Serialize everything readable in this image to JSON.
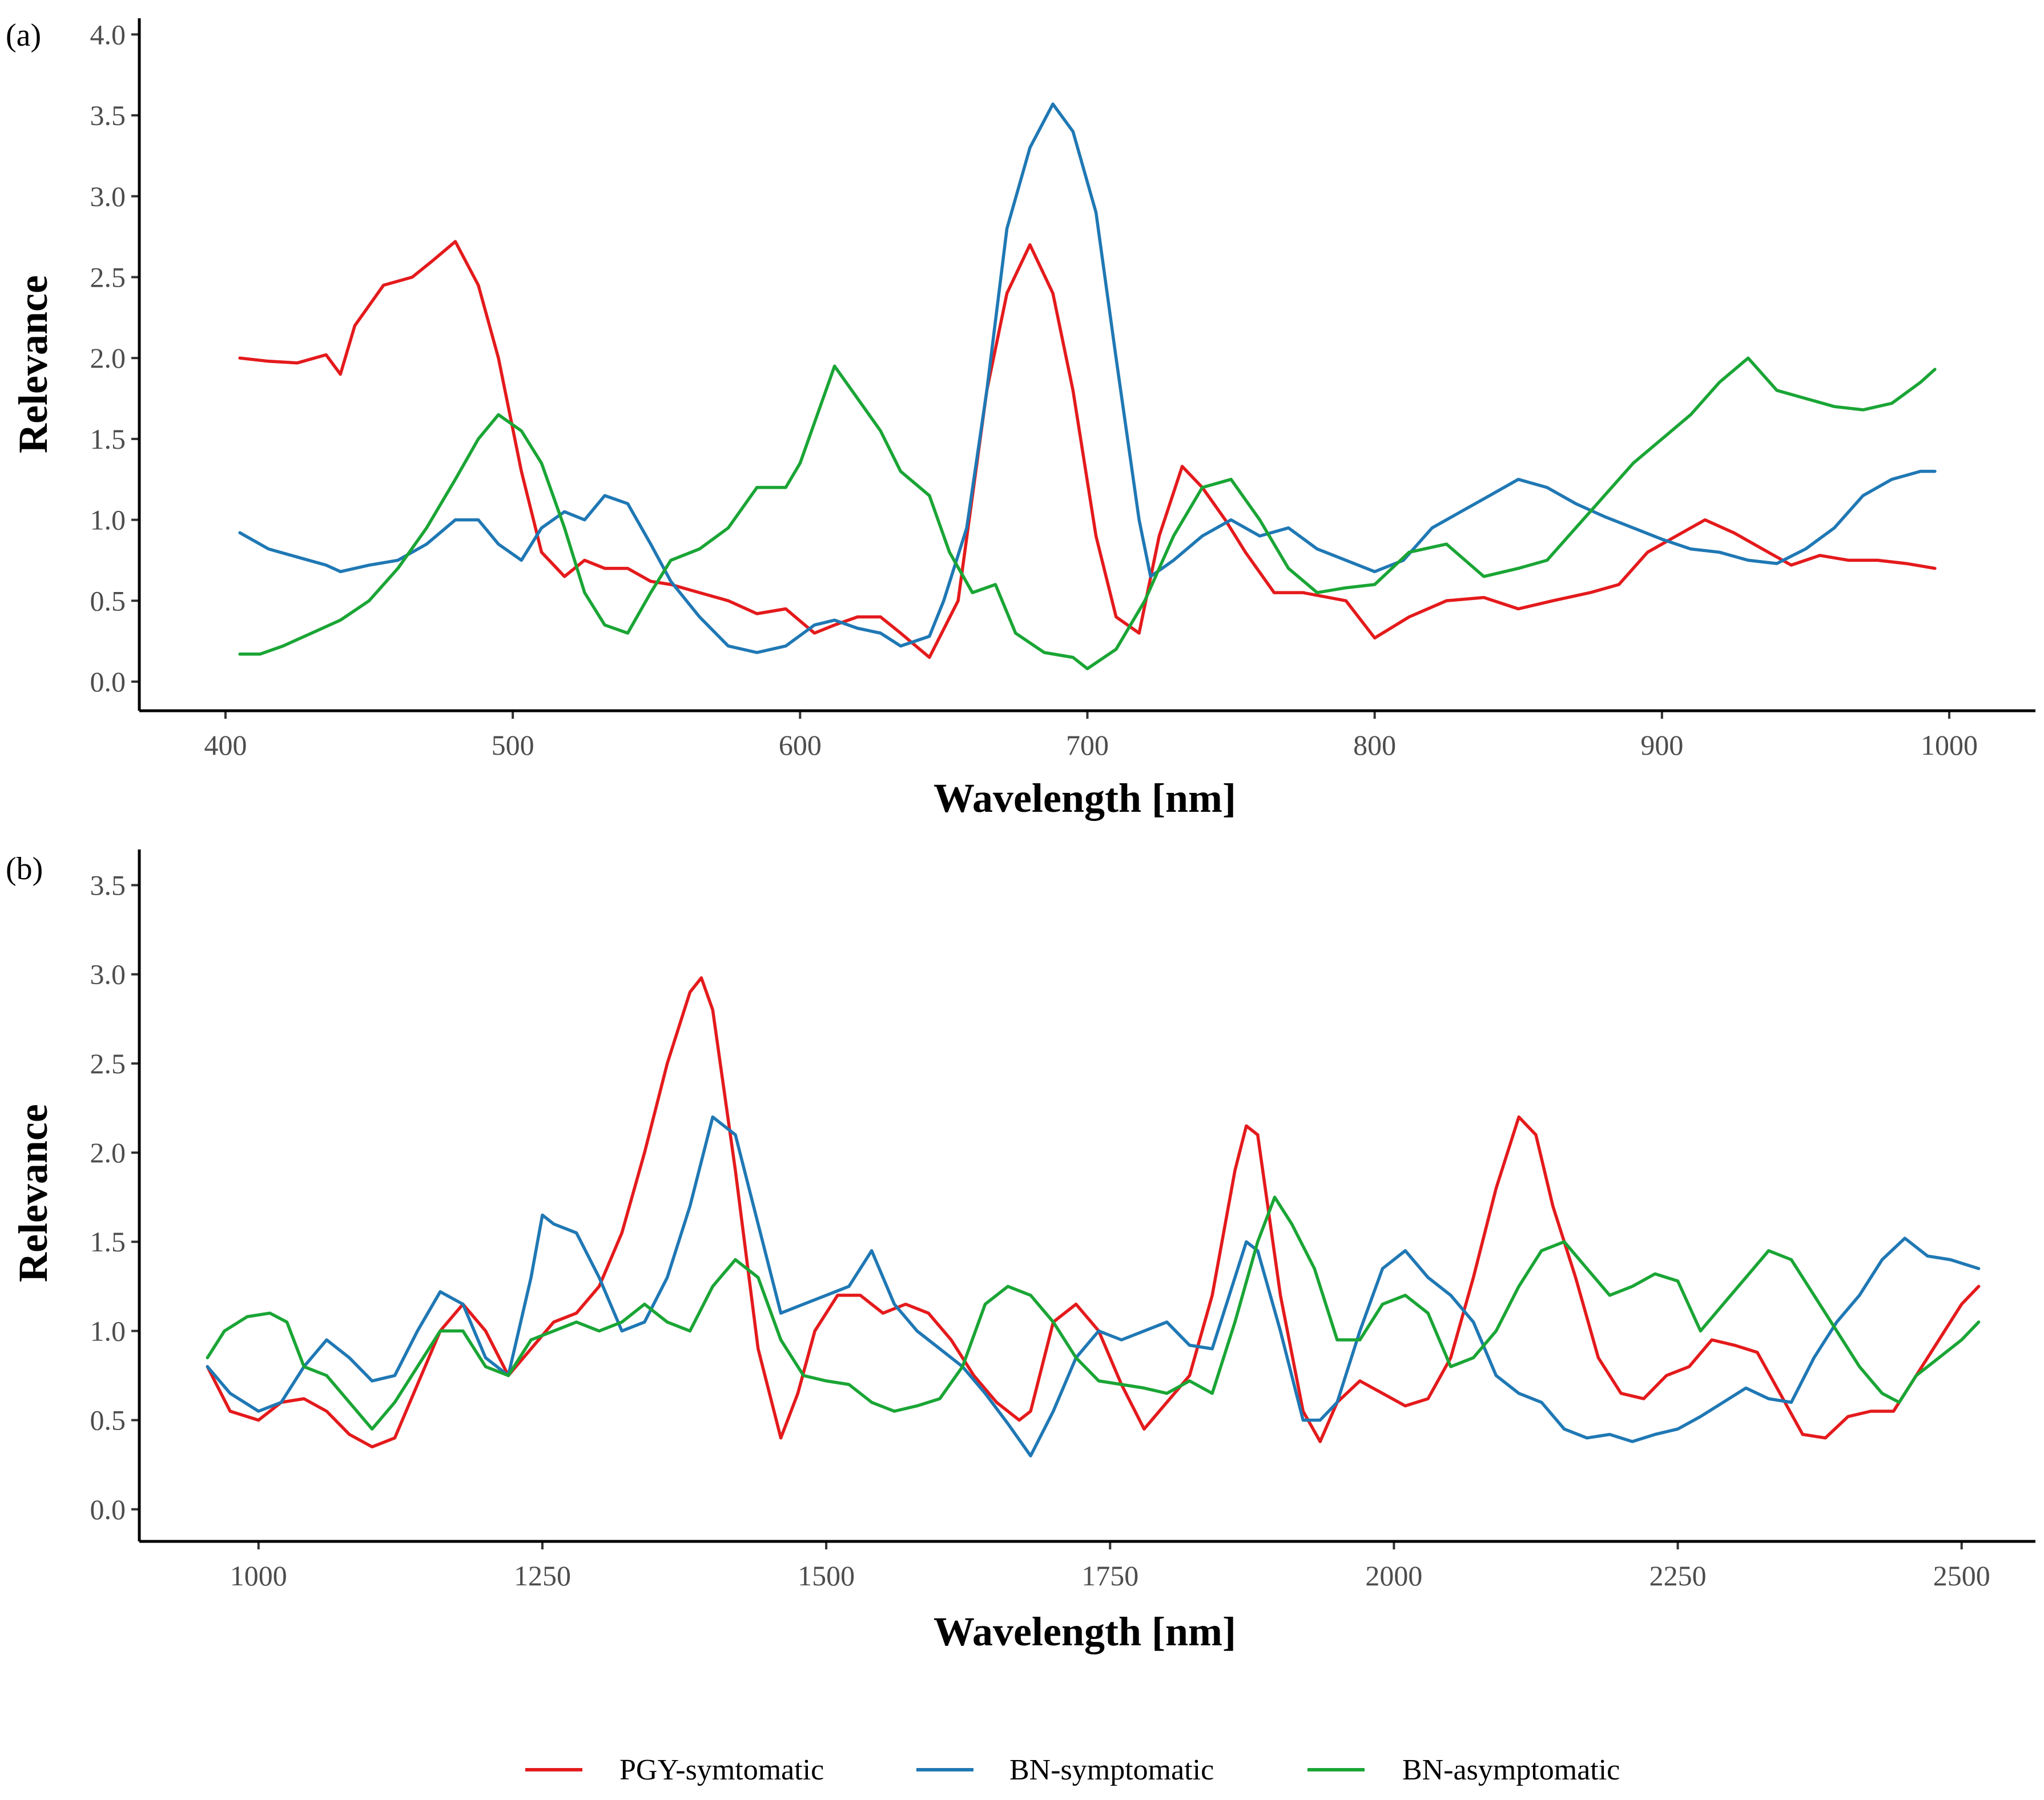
{
  "legend": {
    "entries": [
      {
        "label": "PGY-symtomatic",
        "color": "#e41a1c"
      },
      {
        "label": "BN-symptomatic",
        "color": "#1f78b4"
      },
      {
        "label": "BN-asymptomatic",
        "color": "#1aa535"
      }
    ]
  },
  "chart_data": [
    {
      "type": "line",
      "panel": "(a)",
      "xlabel": "Wavelength [nm]",
      "ylabel": "Relevance",
      "xlim": [
        370,
        1030
      ],
      "ylim": [
        -0.18,
        4.1
      ],
      "xticks": [
        400,
        500,
        600,
        700,
        800,
        900,
        1000
      ],
      "yticks": [
        0.0,
        0.5,
        1.0,
        1.5,
        2.0,
        2.5,
        3.0,
        3.5,
        4.0
      ],
      "xtick_labels": [
        "400",
        "500",
        "600",
        "700",
        "800",
        "900",
        "1000"
      ],
      "ytick_labels": [
        "0.0",
        "0.5",
        "1.0",
        "1.5",
        "2.0",
        "2.5",
        "3.0",
        "3.5",
        "4.0"
      ],
      "series": [
        {
          "name": "PGY-symtomatic",
          "color": "#e41a1c",
          "x": [
            405,
            415,
            425,
            435,
            440,
            445,
            455,
            465,
            472,
            480,
            488,
            495,
            503,
            510,
            518,
            525,
            532,
            540,
            548,
            555,
            565,
            575,
            585,
            595,
            605,
            612,
            620,
            628,
            635,
            645,
            655,
            665,
            672,
            680,
            688,
            695,
            703,
            710,
            718,
            725,
            733,
            740,
            748,
            755,
            765,
            775,
            790,
            800,
            812,
            825,
            838,
            850,
            862,
            875,
            885,
            895,
            905,
            915,
            925,
            935,
            945,
            955,
            965,
            975,
            985,
            995
          ],
          "values": [
            2.0,
            1.98,
            1.97,
            2.02,
            1.9,
            2.2,
            2.45,
            2.5,
            2.6,
            2.72,
            2.45,
            2.0,
            1.3,
            0.8,
            0.65,
            0.75,
            0.7,
            0.7,
            0.62,
            0.6,
            0.55,
            0.5,
            0.42,
            0.45,
            0.3,
            0.35,
            0.4,
            0.4,
            0.3,
            0.15,
            0.5,
            1.8,
            2.4,
            2.7,
            2.4,
            1.8,
            0.9,
            0.4,
            0.3,
            0.9,
            1.33,
            1.2,
            1.0,
            0.8,
            0.55,
            0.55,
            0.5,
            0.27,
            0.4,
            0.5,
            0.52,
            0.45,
            0.5,
            0.55,
            0.6,
            0.8,
            0.9,
            1.0,
            0.92,
            0.82,
            0.72,
            0.78,
            0.75,
            0.75,
            0.73,
            0.7
          ]
        },
        {
          "name": "BN-symptomatic",
          "color": "#1f78b4",
          "x": [
            405,
            415,
            425,
            435,
            440,
            450,
            460,
            470,
            480,
            488,
            495,
            503,
            510,
            518,
            525,
            532,
            540,
            548,
            555,
            565,
            575,
            585,
            595,
            605,
            612,
            620,
            628,
            635,
            645,
            650,
            658,
            665,
            672,
            680,
            688,
            695,
            703,
            710,
            718,
            722,
            730,
            740,
            750,
            760,
            770,
            780,
            790,
            800,
            810,
            820,
            830,
            840,
            850,
            860,
            870,
            880,
            890,
            900,
            910,
            920,
            930,
            940,
            950,
            960,
            970,
            980,
            990,
            995
          ],
          "values": [
            0.92,
            0.82,
            0.77,
            0.72,
            0.68,
            0.72,
            0.75,
            0.85,
            1.0,
            1.0,
            0.85,
            0.75,
            0.95,
            1.05,
            1.0,
            1.15,
            1.1,
            0.85,
            0.62,
            0.4,
            0.22,
            0.18,
            0.22,
            0.35,
            0.38,
            0.33,
            0.3,
            0.22,
            0.28,
            0.5,
            0.95,
            1.8,
            2.8,
            3.3,
            3.57,
            3.4,
            2.9,
            2.0,
            1.0,
            0.65,
            0.75,
            0.9,
            1.0,
            0.9,
            0.95,
            0.82,
            0.75,
            0.68,
            0.75,
            0.95,
            1.05,
            1.15,
            1.25,
            1.2,
            1.1,
            1.02,
            0.95,
            0.88,
            0.82,
            0.8,
            0.75,
            0.73,
            0.82,
            0.95,
            1.15,
            1.25,
            1.3,
            1.3
          ]
        },
        {
          "name": "BN-asymptomatic",
          "color": "#1aa535",
          "x": [
            405,
            412,
            420,
            430,
            440,
            450,
            460,
            470,
            480,
            488,
            495,
            503,
            510,
            518,
            525,
            532,
            540,
            548,
            555,
            565,
            575,
            585,
            595,
            600,
            605,
            612,
            620,
            628,
            635,
            645,
            652,
            660,
            668,
            675,
            685,
            695,
            700,
            710,
            720,
            730,
            740,
            750,
            760,
            770,
            780,
            790,
            800,
            812,
            825,
            838,
            850,
            860,
            870,
            880,
            890,
            900,
            910,
            920,
            930,
            940,
            950,
            960,
            970,
            980,
            990,
            995
          ],
          "values": [
            0.17,
            0.17,
            0.22,
            0.3,
            0.38,
            0.5,
            0.7,
            0.95,
            1.25,
            1.5,
            1.65,
            1.55,
            1.35,
            0.95,
            0.55,
            0.35,
            0.3,
            0.55,
            0.75,
            0.82,
            0.95,
            1.2,
            1.2,
            1.35,
            1.6,
            1.95,
            1.75,
            1.55,
            1.3,
            1.15,
            0.8,
            0.55,
            0.6,
            0.3,
            0.18,
            0.15,
            0.08,
            0.2,
            0.5,
            0.9,
            1.2,
            1.25,
            1.0,
            0.7,
            0.55,
            0.58,
            0.6,
            0.8,
            0.85,
            0.65,
            0.7,
            0.75,
            0.95,
            1.15,
            1.35,
            1.5,
            1.65,
            1.85,
            2.0,
            1.8,
            1.75,
            1.7,
            1.68,
            1.72,
            1.85,
            1.93
          ]
        }
      ]
    },
    {
      "type": "line",
      "panel": "(b)",
      "xlabel": "Wavelength [nm]",
      "ylabel": "Relevance",
      "xlim": [
        895,
        2565
      ],
      "ylim": [
        -0.18,
        3.7
      ],
      "xticks": [
        1000,
        1250,
        1500,
        1750,
        2000,
        2250,
        2500
      ],
      "yticks": [
        0.0,
        0.5,
        1.0,
        1.5,
        2.0,
        2.5,
        3.0,
        3.5
      ],
      "xtick_labels": [
        "1000",
        "1250",
        "1500",
        "1750",
        "2000",
        "2250",
        "2500"
      ],
      "ytick_labels": [
        "0.0",
        "0.5",
        "1.0",
        "1.5",
        "2.0",
        "2.5",
        "3.0",
        "3.5"
      ],
      "series": [
        {
          "name": "PGY-symtomatic",
          "color": "#e41a1c",
          "x": [
            955,
            975,
            1000,
            1020,
            1040,
            1060,
            1080,
            1100,
            1120,
            1140,
            1160,
            1180,
            1200,
            1220,
            1240,
            1260,
            1280,
            1300,
            1320,
            1340,
            1360,
            1380,
            1390,
            1400,
            1420,
            1440,
            1460,
            1475,
            1490,
            1510,
            1530,
            1550,
            1570,
            1590,
            1610,
            1630,
            1650,
            1670,
            1680,
            1700,
            1720,
            1740,
            1760,
            1780,
            1800,
            1820,
            1840,
            1860,
            1870,
            1880,
            1900,
            1920,
            1935,
            1950,
            1970,
            1990,
            2010,
            2030,
            2050,
            2070,
            2090,
            2110,
            2125,
            2140,
            2160,
            2180,
            2200,
            2220,
            2240,
            2260,
            2280,
            2300,
            2320,
            2340,
            2360,
            2380,
            2400,
            2420,
            2440,
            2460,
            2480,
            2500,
            2515
          ],
          "values": [
            0.8,
            0.55,
            0.5,
            0.6,
            0.62,
            0.55,
            0.42,
            0.35,
            0.4,
            0.7,
            1.0,
            1.15,
            1.0,
            0.75,
            0.9,
            1.05,
            1.1,
            1.25,
            1.55,
            2.0,
            2.5,
            2.9,
            2.98,
            2.8,
            1.9,
            0.9,
            0.4,
            0.65,
            1.0,
            1.2,
            1.2,
            1.1,
            1.15,
            1.1,
            0.95,
            0.75,
            0.6,
            0.5,
            0.55,
            1.05,
            1.15,
            1.0,
            0.7,
            0.45,
            0.6,
            0.75,
            1.2,
            1.9,
            2.15,
            2.1,
            1.2,
            0.55,
            0.38,
            0.6,
            0.72,
            0.65,
            0.58,
            0.62,
            0.85,
            1.3,
            1.8,
            2.2,
            2.1,
            1.7,
            1.3,
            0.85,
            0.65,
            0.62,
            0.75,
            0.8,
            0.95,
            0.92,
            0.88,
            0.65,
            0.42,
            0.4,
            0.52,
            0.55,
            0.55,
            0.75,
            0.95,
            1.15,
            1.25
          ]
        },
        {
          "name": "BN-symptomatic",
          "color": "#1f78b4",
          "x": [
            955,
            975,
            1000,
            1020,
            1040,
            1060,
            1080,
            1100,
            1120,
            1140,
            1160,
            1180,
            1200,
            1220,
            1240,
            1250,
            1260,
            1280,
            1300,
            1320,
            1340,
            1360,
            1380,
            1400,
            1420,
            1440,
            1460,
            1480,
            1500,
            1520,
            1540,
            1560,
            1580,
            1600,
            1620,
            1640,
            1660,
            1680,
            1700,
            1720,
            1740,
            1760,
            1780,
            1800,
            1820,
            1840,
            1860,
            1870,
            1880,
            1900,
            1920,
            1935,
            1950,
            1970,
            1990,
            2010,
            2030,
            2050,
            2070,
            2090,
            2110,
            2130,
            2150,
            2170,
            2190,
            2210,
            2230,
            2250,
            2270,
            2290,
            2310,
            2330,
            2350,
            2370,
            2390,
            2410,
            2430,
            2450,
            2470,
            2490,
            2515
          ],
          "values": [
            0.8,
            0.65,
            0.55,
            0.6,
            0.8,
            0.95,
            0.85,
            0.72,
            0.75,
            1.0,
            1.22,
            1.15,
            0.85,
            0.75,
            1.3,
            1.65,
            1.6,
            1.55,
            1.3,
            1.0,
            1.05,
            1.3,
            1.7,
            2.2,
            2.1,
            1.6,
            1.1,
            1.15,
            1.2,
            1.25,
            1.45,
            1.15,
            1.0,
            0.9,
            0.8,
            0.65,
            0.48,
            0.3,
            0.55,
            0.85,
            1.0,
            0.95,
            1.0,
            1.05,
            0.92,
            0.9,
            1.3,
            1.5,
            1.45,
            1.0,
            0.5,
            0.5,
            0.6,
            1.0,
            1.35,
            1.45,
            1.3,
            1.2,
            1.05,
            0.75,
            0.65,
            0.6,
            0.45,
            0.4,
            0.42,
            0.38,
            0.42,
            0.45,
            0.52,
            0.6,
            0.68,
            0.62,
            0.6,
            0.85,
            1.05,
            1.2,
            1.4,
            1.52,
            1.42,
            1.4,
            1.35
          ]
        },
        {
          "name": "BN-asymptomatic",
          "color": "#1aa535",
          "x": [
            955,
            970,
            990,
            1010,
            1025,
            1040,
            1060,
            1080,
            1100,
            1120,
            1140,
            1160,
            1180,
            1200,
            1220,
            1240,
            1260,
            1280,
            1300,
            1320,
            1340,
            1360,
            1380,
            1400,
            1420,
            1440,
            1460,
            1480,
            1500,
            1520,
            1540,
            1560,
            1580,
            1600,
            1620,
            1640,
            1660,
            1680,
            1700,
            1720,
            1740,
            1760,
            1780,
            1800,
            1820,
            1840,
            1860,
            1880,
            1895,
            1910,
            1930,
            1950,
            1970,
            1990,
            2010,
            2030,
            2050,
            2070,
            2090,
            2110,
            2130,
            2150,
            2170,
            2190,
            2210,
            2230,
            2250,
            2270,
            2290,
            2310,
            2330,
            2350,
            2370,
            2390,
            2410,
            2430,
            2445,
            2460,
            2480,
            2500,
            2515
          ],
          "values": [
            0.85,
            1.0,
            1.08,
            1.1,
            1.05,
            0.8,
            0.75,
            0.6,
            0.45,
            0.6,
            0.8,
            1.0,
            1.0,
            0.8,
            0.75,
            0.95,
            1.0,
            1.05,
            1.0,
            1.05,
            1.15,
            1.05,
            1.0,
            1.25,
            1.4,
            1.3,
            0.95,
            0.75,
            0.72,
            0.7,
            0.6,
            0.55,
            0.58,
            0.62,
            0.8,
            1.15,
            1.25,
            1.2,
            1.05,
            0.85,
            0.72,
            0.7,
            0.68,
            0.65,
            0.72,
            0.65,
            1.05,
            1.5,
            1.75,
            1.6,
            1.35,
            0.95,
            0.95,
            1.15,
            1.2,
            1.1,
            0.8,
            0.85,
            1.0,
            1.25,
            1.45,
            1.5,
            1.35,
            1.2,
            1.25,
            1.32,
            1.28,
            1.0,
            1.15,
            1.3,
            1.45,
            1.4,
            1.2,
            1.0,
            0.8,
            0.65,
            0.6,
            0.75,
            0.85,
            0.95,
            1.05
          ]
        }
      ]
    }
  ]
}
